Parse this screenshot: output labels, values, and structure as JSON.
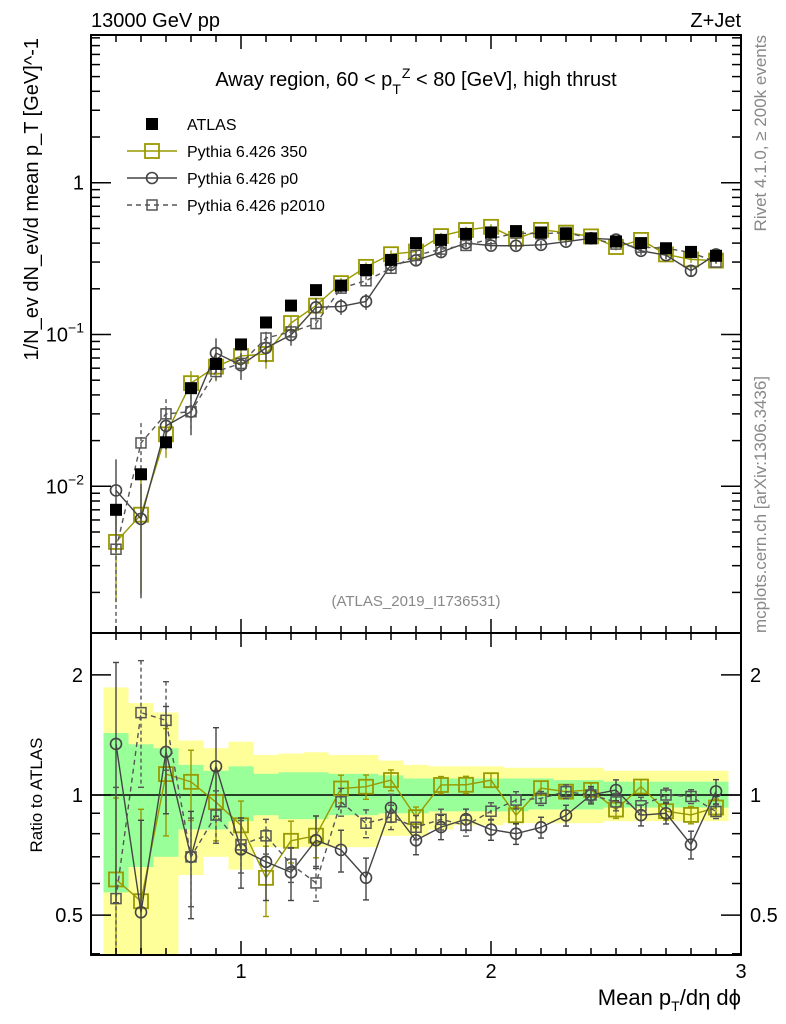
{
  "header": {
    "left": "13000 GeV pp",
    "right": "Z+Jet"
  },
  "side": {
    "rivet": "Rivet 4.1.0, ≥ 200k events",
    "mcplots": "mcplots.cern.ch [arXiv:1306.3436]"
  },
  "analysis_id": "(ATLAS_2019_I1736531)",
  "chart_data": {
    "type": "scatter",
    "title": "Away region, 60 < p_T^Z < 80 [GeV], high thrust",
    "title_parts": {
      "a": "Away region, 60 < p",
      "sub": "T",
      "sup": "Z",
      "b": " < 80 [GeV], high thrust"
    },
    "xlabel": "Mean p_T/dη dϕ",
    "xlabel_parts": {
      "a": "Mean p",
      "sub": "T",
      "b": "/dη dϕ"
    },
    "ylabel": "1/N_ev dN_ev/d mean p_T [GeV]^-1",
    "ylabel_parts": {
      "a": "1/N",
      "s1": "ev",
      "b": " dN",
      "s2": "ev",
      "c": "/d mean p",
      "s3": "T",
      "d": " [GeV]",
      "sup": "-1"
    },
    "ratio_ylabel": "Ratio to ATLAS",
    "xlim": [
      0.4,
      3.0
    ],
    "ylim": [
      0.0011,
      9.7
    ],
    "yscale": "log",
    "ratio_ylim": [
      0.397,
      2.55
    ],
    "x_ticks": [
      "1",
      "2",
      "3"
    ],
    "y_ticks": [
      {
        "base": "1",
        "exp": ""
      },
      {
        "base": "10",
        "exp": "−1"
      },
      {
        "base": "10",
        "exp": "−2"
      }
    ],
    "ratio_ticks": [
      "0.5",
      "1",
      "2"
    ],
    "legend_position": "top-left",
    "x": [
      0.5,
      0.6,
      0.7,
      0.8,
      0.9,
      1.0,
      1.1,
      1.2,
      1.3,
      1.4,
      1.5,
      1.6,
      1.7,
      1.8,
      1.9,
      2.0,
      2.1,
      2.2,
      2.3,
      2.4,
      2.5,
      2.6,
      2.7,
      2.8,
      2.9
    ],
    "series": [
      {
        "name": "ATLAS",
        "color": "#000000",
        "marker": "filled-square",
        "values": [
          0.007,
          0.012,
          0.0195,
          0.0443,
          0.064,
          0.086,
          0.12,
          0.155,
          0.196,
          0.21,
          0.266,
          0.31,
          0.4,
          0.42,
          0.46,
          0.47,
          0.48,
          0.47,
          0.46,
          0.43,
          0.41,
          0.4,
          0.37,
          0.35,
          0.33
        ]
      },
      {
        "name": "Pythia 6.426 350",
        "color": "#999900",
        "marker": "open-square",
        "line": "solid",
        "values": [
          0.0043,
          0.0065,
          0.022,
          0.0478,
          0.0614,
          0.0722,
          0.0744,
          0.119,
          0.155,
          0.218,
          0.279,
          0.338,
          0.352,
          0.445,
          0.488,
          0.512,
          0.427,
          0.489,
          0.469,
          0.443,
          0.377,
          0.42,
          0.337,
          0.312,
          0.307
        ],
        "rel_err": [
          0.6,
          0.7,
          0.3,
          0.2,
          0.2,
          0.15,
          0.2,
          0.12,
          0.12,
          0.08,
          0.07,
          0.06,
          0.06,
          0.05,
          0.05,
          0.04,
          0.05,
          0.04,
          0.04,
          0.04,
          0.05,
          0.04,
          0.05,
          0.05,
          0.05
        ]
      },
      {
        "name": "Pythia 6.426 p0",
        "color": "#444444",
        "marker": "open-circle",
        "line": "solid",
        "values": [
          0.0094,
          0.0061,
          0.025,
          0.031,
          0.0755,
          0.0628,
          0.0816,
          0.0992,
          0.151,
          0.153,
          0.165,
          0.288,
          0.308,
          0.349,
          0.4,
          0.385,
          0.384,
          0.39,
          0.409,
          0.43,
          0.422,
          0.356,
          0.333,
          0.263,
          0.337
        ],
        "rel_err": [
          0.6,
          0.7,
          0.3,
          0.3,
          0.25,
          0.2,
          0.2,
          0.15,
          0.15,
          0.12,
          0.12,
          0.08,
          0.08,
          0.07,
          0.06,
          0.06,
          0.06,
          0.06,
          0.06,
          0.05,
          0.06,
          0.06,
          0.06,
          0.08,
          0.07
        ]
      },
      {
        "name": "Pythia 6.426 p2010",
        "color": "#555555",
        "marker": "open-square-small",
        "line": "dashed",
        "values": [
          0.00385,
          0.0193,
          0.03,
          0.031,
          0.057,
          0.0645,
          0.0948,
          0.104,
          0.118,
          0.202,
          0.226,
          0.273,
          0.332,
          0.365,
          0.386,
          0.428,
          0.466,
          0.461,
          0.469,
          0.43,
          0.394,
          0.376,
          0.37,
          0.347,
          0.3
        ],
        "rel_err": [
          0.9,
          0.35,
          0.25,
          0.25,
          0.15,
          0.15,
          0.1,
          0.1,
          0.1,
          0.08,
          0.08,
          0.07,
          0.07,
          0.06,
          0.06,
          0.05,
          0.05,
          0.04,
          0.04,
          0.04,
          0.05,
          0.05,
          0.04,
          0.04,
          0.04
        ]
      }
    ],
    "ratio_bands": {
      "total_color": "#ffff99",
      "stat_color": "#99ff99",
      "total_hi": [
        1.86,
        1.7,
        1.61,
        1.37,
        1.31,
        1.36,
        1.26,
        1.27,
        1.28,
        1.26,
        1.26,
        1.22,
        1.19,
        1.18,
        1.18,
        1.18,
        1.17,
        1.17,
        1.17,
        1.17,
        1.15,
        1.15,
        1.15,
        1.15,
        1.15
      ],
      "total_lo": [
        0.3,
        0.3,
        0.3,
        0.63,
        0.7,
        0.65,
        0.74,
        0.74,
        0.74,
        0.74,
        0.74,
        0.79,
        0.79,
        0.82,
        0.84,
        0.84,
        0.85,
        0.85,
        0.85,
        0.85,
        0.86,
        0.86,
        0.86,
        0.86,
        0.86
      ],
      "stat_hi": [
        1.43,
        1.34,
        1.31,
        1.19,
        1.15,
        1.18,
        1.13,
        1.14,
        1.14,
        1.13,
        1.13,
        1.12,
        1.1,
        1.1,
        1.1,
        1.1,
        1.1,
        1.1,
        1.09,
        1.09,
        1.08,
        1.08,
        1.08,
        1.08,
        1.08
      ],
      "stat_lo": [
        0.57,
        0.66,
        0.7,
        0.82,
        0.82,
        0.86,
        0.89,
        0.87,
        0.87,
        0.89,
        0.89,
        0.9,
        0.9,
        0.91,
        0.91,
        0.91,
        0.91,
        0.92,
        0.92,
        0.92,
        0.93,
        0.93,
        0.93,
        0.93,
        0.93
      ]
    }
  }
}
